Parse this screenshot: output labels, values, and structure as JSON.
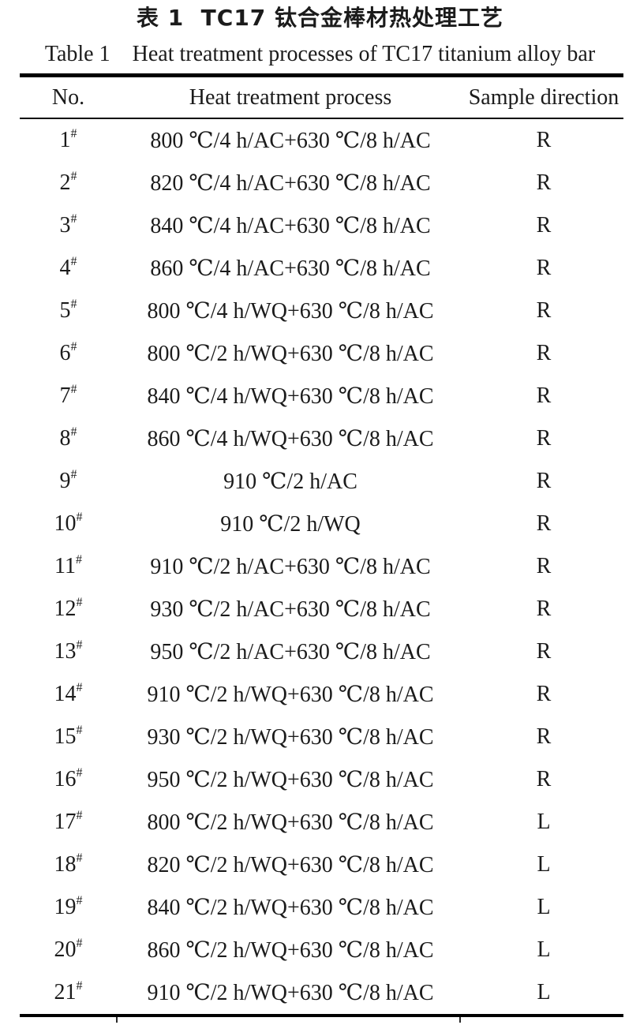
{
  "page": {
    "background": "#ffffff",
    "text_color": "#1b1b1b",
    "rule_color": "#000000"
  },
  "header": {
    "title_zh": "表 1  TC17 钛合金棒材热处理工艺",
    "title_en": "Table 1    Heat treatment processes of TC17 titanium alloy bar"
  },
  "table": {
    "columns": [
      "No.",
      "Heat treatment process",
      "Sample direction"
    ],
    "no_suffix": "#",
    "rows": [
      {
        "no": "1",
        "process": "800 ℃/4 h/AC+630 ℃/8 h/AC",
        "direction": "R"
      },
      {
        "no": "2",
        "process": "820 ℃/4 h/AC+630 ℃/8 h/AC",
        "direction": "R"
      },
      {
        "no": "3",
        "process": "840 ℃/4 h/AC+630 ℃/8 h/AC",
        "direction": "R"
      },
      {
        "no": "4",
        "process": "860 ℃/4 h/AC+630 ℃/8 h/AC",
        "direction": "R"
      },
      {
        "no": "5",
        "process": "800 ℃/4 h/WQ+630 ℃/8 h/AC",
        "direction": "R"
      },
      {
        "no": "6",
        "process": "800 ℃/2 h/WQ+630 ℃/8 h/AC",
        "direction": "R"
      },
      {
        "no": "7",
        "process": "840 ℃/4 h/WQ+630 ℃/8 h/AC",
        "direction": "R"
      },
      {
        "no": "8",
        "process": "860 ℃/4 h/WQ+630 ℃/8 h/AC",
        "direction": "R"
      },
      {
        "no": "9",
        "process": "910 ℃/2 h/AC",
        "direction": "R"
      },
      {
        "no": "10",
        "process": "910 ℃/2 h/WQ",
        "direction": "R"
      },
      {
        "no": "11",
        "process": "910 ℃/2 h/AC+630 ℃/8 h/AC",
        "direction": "R"
      },
      {
        "no": "12",
        "process": "930 ℃/2 h/AC+630 ℃/8 h/AC",
        "direction": "R"
      },
      {
        "no": "13",
        "process": "950 ℃/2 h/AC+630 ℃/8 h/AC",
        "direction": "R"
      },
      {
        "no": "14",
        "process": "910 ℃/2 h/WQ+630 ℃/8 h/AC",
        "direction": "R"
      },
      {
        "no": "15",
        "process": "930 ℃/2 h/WQ+630 ℃/8 h/AC",
        "direction": "R"
      },
      {
        "no": "16",
        "process": "950 ℃/2 h/WQ+630 ℃/8 h/AC",
        "direction": "R"
      },
      {
        "no": "17",
        "process": "800 ℃/2 h/WQ+630 ℃/8 h/AC",
        "direction": "L"
      },
      {
        "no": "18",
        "process": "820 ℃/2 h/WQ+630 ℃/8 h/AC",
        "direction": "L"
      },
      {
        "no": "19",
        "process": "840 ℃/2 h/WQ+630 ℃/8 h/AC",
        "direction": "L"
      },
      {
        "no": "20",
        "process": "860 ℃/2 h/WQ+630 ℃/8 h/AC",
        "direction": "L"
      },
      {
        "no": "21",
        "process": "910 ℃/2 h/WQ+630 ℃/8 h/AC",
        "direction": "L"
      }
    ]
  }
}
